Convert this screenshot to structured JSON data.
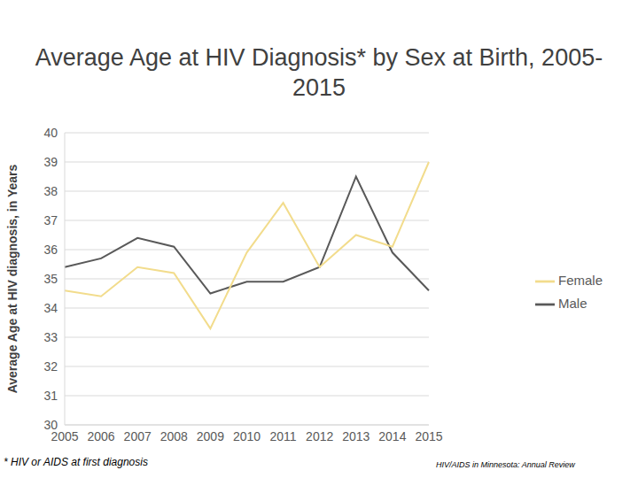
{
  "chart_data": {
    "type": "line",
    "title": "Average Age at HIV Diagnosis* by Sex at Birth, 2005-2015",
    "y_label": "Average Age at HIV diagnosis, in Years",
    "footnote": "* HIV or AIDS at first diagnosis",
    "source": "HIV/AIDS in Minnesota: Annual Review",
    "categories": [
      "2005",
      "2006",
      "2007",
      "2008",
      "2009",
      "2010",
      "2011",
      "2012",
      "2013",
      "2014",
      "2015"
    ],
    "series": [
      {
        "name": "Male",
        "color": "#595959",
        "values": [
          35.4,
          35.7,
          36.4,
          36.1,
          34.5,
          34.9,
          34.9,
          35.4,
          38.5,
          35.9,
          34.6
        ]
      },
      {
        "name": "Female",
        "color": "#f2dc8c",
        "values": [
          34.6,
          34.4,
          35.4,
          35.2,
          33.3,
          35.9,
          37.6,
          35.4,
          36.5,
          36.1,
          39.0
        ]
      }
    ],
    "ylim": [
      30,
      40
    ],
    "yticks": [
      30,
      31,
      32,
      33,
      34,
      35,
      36,
      37,
      38,
      39,
      40
    ],
    "grid": true,
    "legend": "right"
  }
}
